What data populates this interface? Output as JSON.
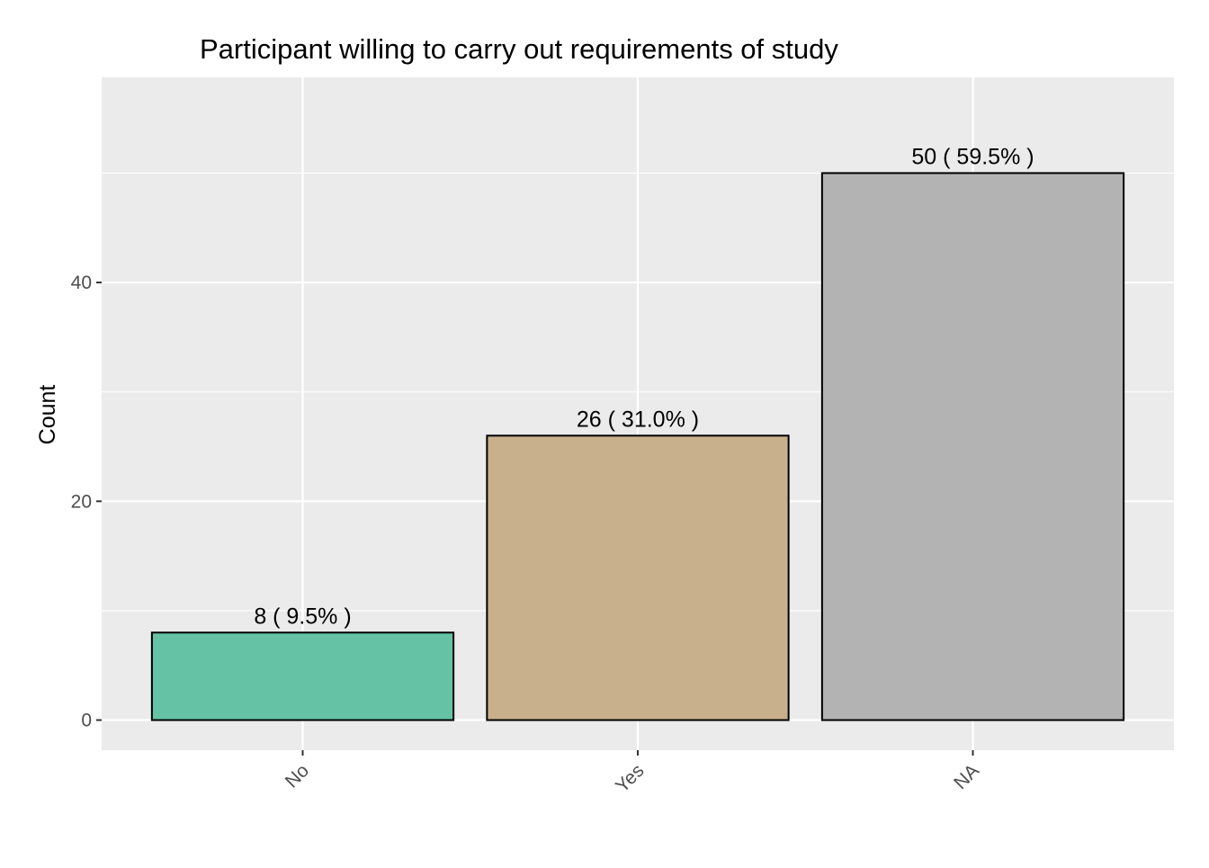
{
  "chart_data": {
    "type": "bar",
    "title": "Participant willing to carry out requirements of study",
    "xlabel": "",
    "ylabel": "Count",
    "categories": [
      "No",
      "Yes",
      "NA"
    ],
    "values": [
      8,
      26,
      50
    ],
    "data_labels": [
      "8  ( 9.5% )",
      "26  ( 31.0% )",
      "50  ( 59.5% )"
    ],
    "bar_colors": [
      "#66c2a5",
      "#c7b08b",
      "#b3b3b3"
    ],
    "ylim": [
      -2.75,
      58.75
    ],
    "y_ticks": [
      0,
      20,
      40
    ],
    "y_minor_ticks": [
      10,
      30,
      50
    ],
    "grid": true,
    "legend": "none",
    "panel_background": "#ebebeb",
    "gridline_color": "#ffffff"
  }
}
